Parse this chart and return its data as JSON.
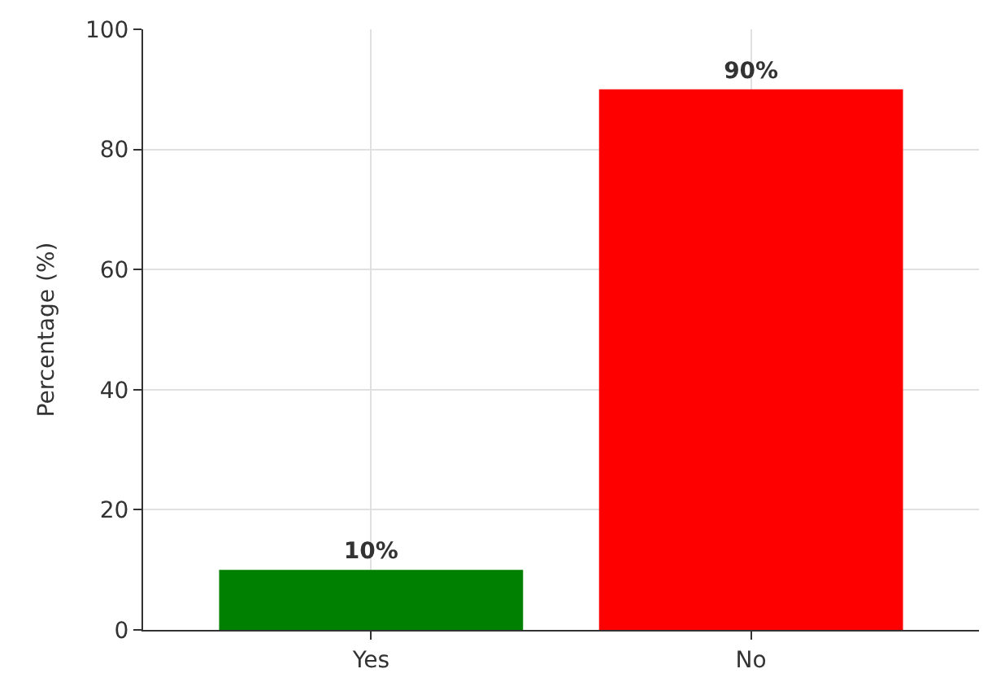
{
  "chart_data": {
    "type": "bar",
    "ylabel": "Percentage (%)",
    "categories": [
      "Yes",
      "No"
    ],
    "values": [
      10,
      90
    ],
    "colors": [
      "#008000",
      "#ff0000"
    ],
    "value_labels": [
      "10%",
      "90%"
    ],
    "ylim": [
      0,
      100
    ],
    "yticks": [
      0,
      20,
      40,
      60,
      80,
      100
    ],
    "grid": true
  }
}
